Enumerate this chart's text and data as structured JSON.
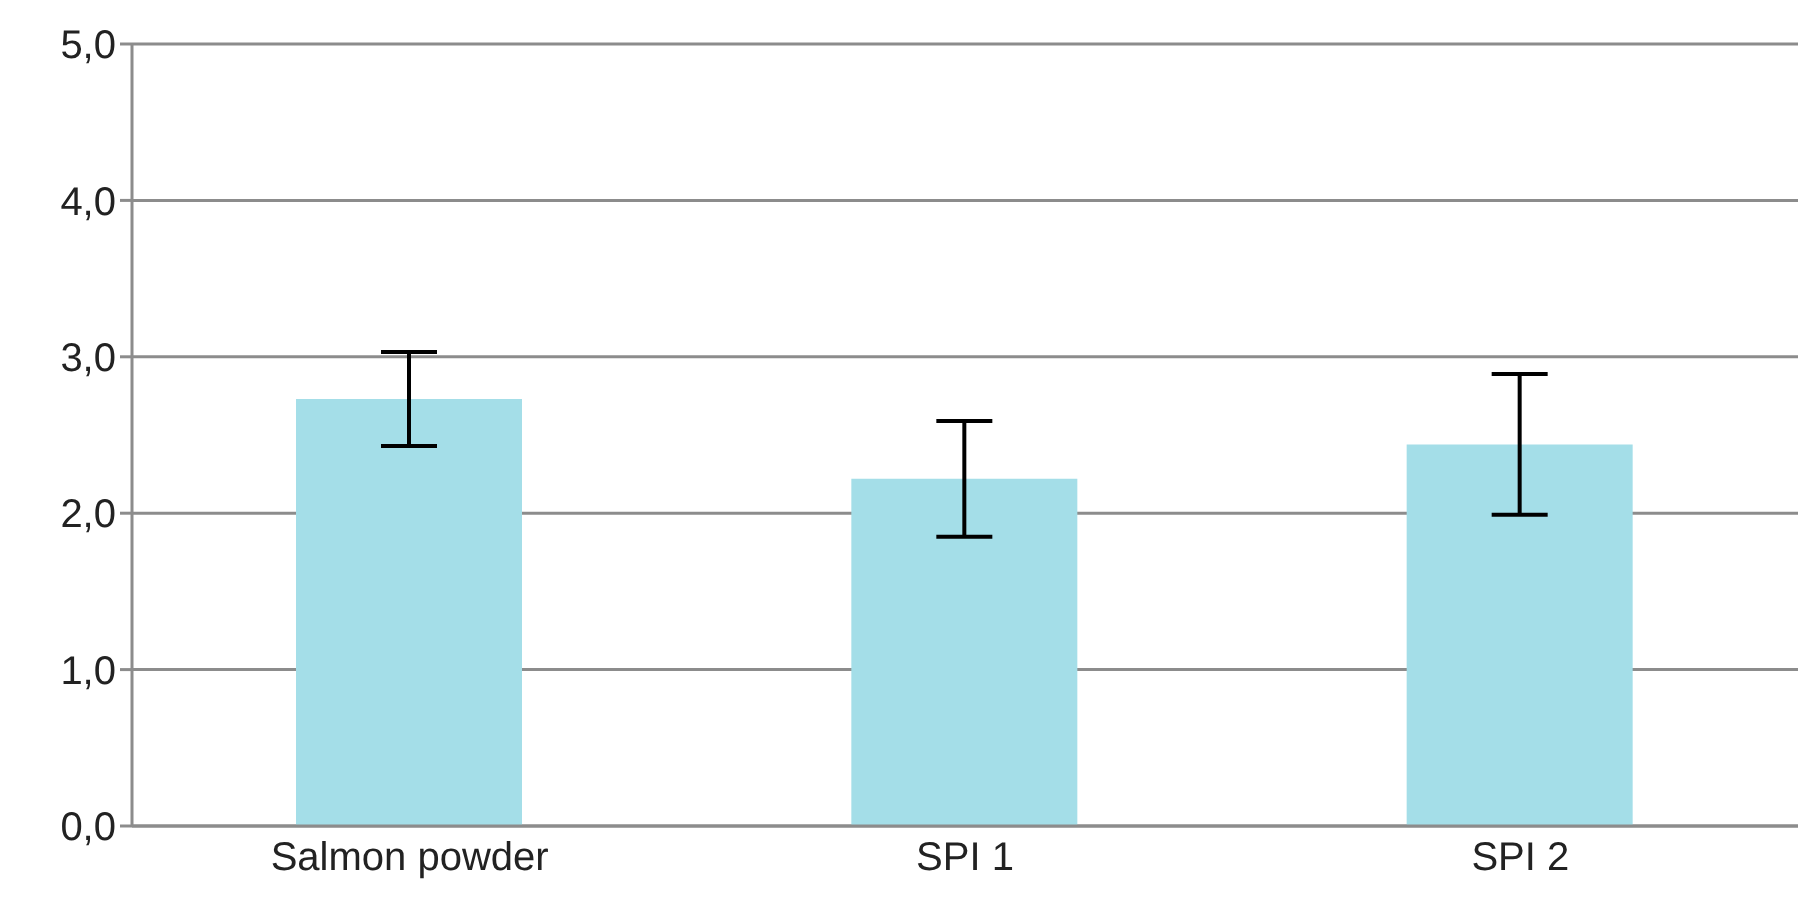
{
  "chart_data": {
    "type": "bar",
    "categories": [
      "Salmon powder",
      "SPI 1",
      "SPI 2"
    ],
    "values": [
      2.73,
      2.22,
      2.44
    ],
    "errors": [
      0.3,
      0.37,
      0.45
    ],
    "color": "#a4dee8",
    "ylim": [
      0,
      5
    ],
    "yticks": [
      {
        "value": 0,
        "label": "0,0"
      },
      {
        "value": 1,
        "label": "1,0"
      },
      {
        "value": 2,
        "label": "2,0"
      },
      {
        "value": 3,
        "label": "3,0"
      },
      {
        "value": 4,
        "label": "4,0"
      },
      {
        "value": 5,
        "label": "5,0"
      }
    ],
    "grid": "y"
  }
}
